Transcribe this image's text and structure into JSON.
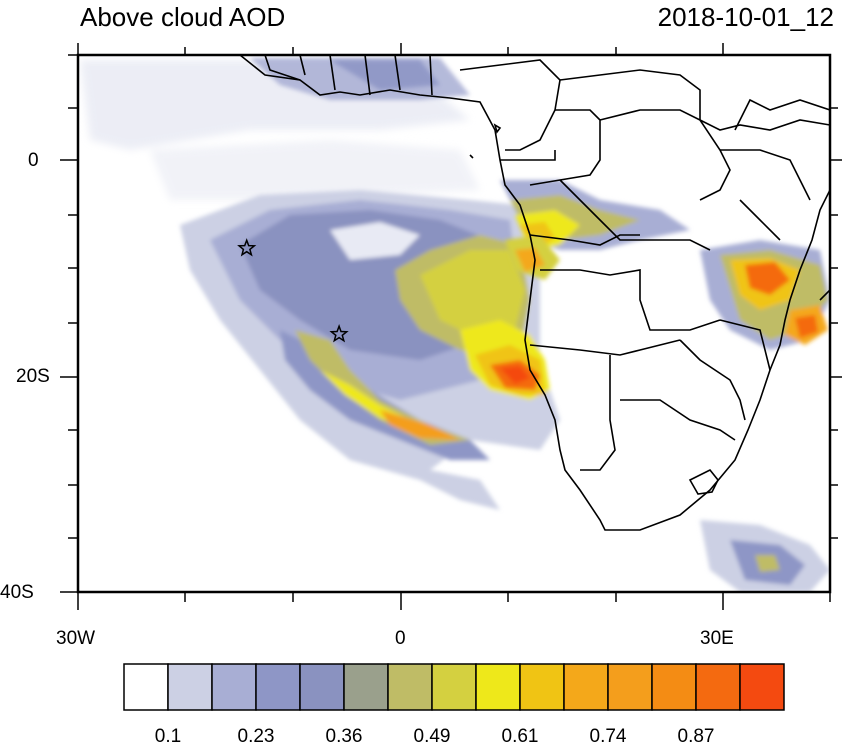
{
  "title_left": "Above cloud AOD",
  "title_right": "2018-10-01_12",
  "axes": {
    "lat_labels": [
      {
        "label": "0",
        "value": 0
      },
      {
        "label": "20S",
        "value": -20
      },
      {
        "label": "40S",
        "value": -40
      }
    ],
    "lon_labels": [
      {
        "label": "30W",
        "value": -30
      },
      {
        "label": "0",
        "value": 0
      },
      {
        "label": "30E",
        "value": 30
      }
    ],
    "lon_range": [
      -30,
      40
    ],
    "lat_range": [
      -40,
      10
    ]
  },
  "markers": [
    {
      "name": "star",
      "lon": -14.3,
      "lat": -8.0
    },
    {
      "name": "star",
      "lon": -5.7,
      "lat": -16.0
    }
  ],
  "colorbar": {
    "colors": [
      "#ffffff",
      "#ccd0e4",
      "#a8aed4",
      "#8e96c6",
      "#8a92c0",
      "#9aa08c",
      "#bfbc66",
      "#d4d040",
      "#eee81a",
      "#f0c414",
      "#f4a81a",
      "#f49e1c",
      "#f48c14",
      "#f46a10",
      "#f44a10"
    ],
    "tick_labels": [
      "0.1",
      "0.23",
      "0.36",
      "0.49",
      "0.61",
      "0.74",
      "0.87"
    ]
  }
}
